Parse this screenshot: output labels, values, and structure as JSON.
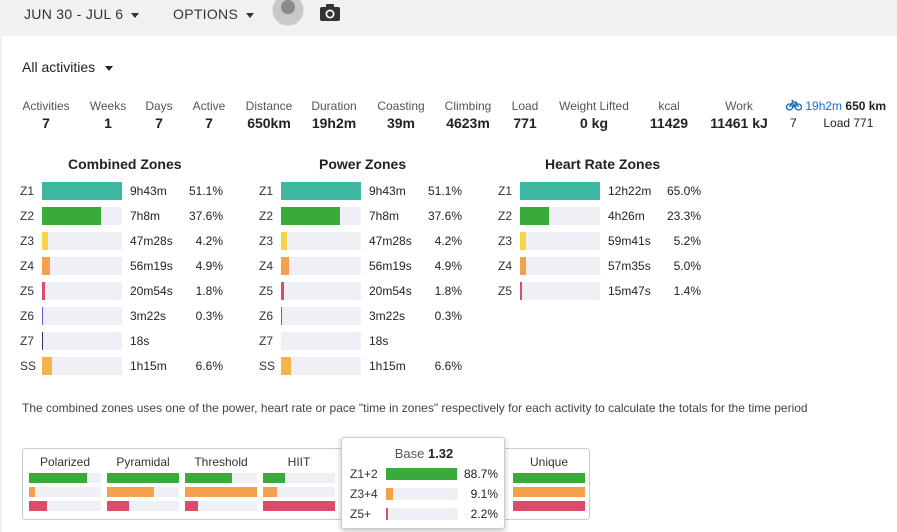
{
  "topbar": {
    "date_range": "JUN 30 - JUL 6",
    "options_label": "OPTIONS",
    "avatar_icon": "user-avatar",
    "camera_icon": "camera-icon"
  },
  "filter": {
    "label": "All activities"
  },
  "stats": [
    {
      "label": "Activities",
      "value": "7"
    },
    {
      "label": "Weeks",
      "value": "1"
    },
    {
      "label": "Days",
      "value": "7"
    },
    {
      "label": "Active",
      "value": "7"
    },
    {
      "label": "Distance",
      "value": "650km"
    },
    {
      "label": "Duration",
      "value": "19h2m"
    },
    {
      "label": "Coasting",
      "value": "39m"
    },
    {
      "label": "Climbing",
      "value": "4623m"
    },
    {
      "label": "Load",
      "value": "771"
    },
    {
      "label": "Weight Lifted",
      "value": "0 kg"
    },
    {
      "label": "kcal",
      "value": "11429"
    },
    {
      "label": "Work",
      "value": "11461 kJ"
    }
  ],
  "bike": {
    "icon": "bicycle-icon",
    "duration": "19h2m",
    "distance": "650 km",
    "count": "7",
    "load": "Load 771"
  },
  "zones": {
    "combined": {
      "title": "Combined Zones",
      "rows": [
        {
          "zone": "Z1",
          "time": "9h43m",
          "pct": "51.1%",
          "fraction": 1.0,
          "color": "#3cb8a0"
        },
        {
          "zone": "Z2",
          "time": "7h8m",
          "pct": "37.6%",
          "fraction": 0.74,
          "color": "#3aaa3a"
        },
        {
          "zone": "Z3",
          "time": "47m28s",
          "pct": "4.2%",
          "fraction": 0.08,
          "color": "#f5d44a"
        },
        {
          "zone": "Z4",
          "time": "56m19s",
          "pct": "4.9%",
          "fraction": 0.1,
          "color": "#f5a04a"
        },
        {
          "zone": "Z5",
          "time": "20m54s",
          "pct": "1.8%",
          "fraction": 0.035,
          "color": "#e04a6a"
        },
        {
          "zone": "Z6",
          "time": "3m22s",
          "pct": "0.3%",
          "fraction": 0.012,
          "color": "#6a5ad0"
        },
        {
          "zone": "Z7",
          "time": "18s",
          "pct": "",
          "fraction": 0.006,
          "color": "#333366"
        },
        {
          "zone": "SS",
          "time": "1h15m",
          "pct": "6.6%",
          "fraction": 0.13,
          "color": "#f5b44a"
        }
      ]
    },
    "power": {
      "title": "Power Zones",
      "rows": [
        {
          "zone": "Z1",
          "time": "9h43m",
          "pct": "51.1%",
          "fraction": 1.0,
          "color": "#3cb8a0"
        },
        {
          "zone": "Z2",
          "time": "7h8m",
          "pct": "37.6%",
          "fraction": 0.74,
          "color": "#3aaa3a"
        },
        {
          "zone": "Z3",
          "time": "47m28s",
          "pct": "4.2%",
          "fraction": 0.08,
          "color": "#f5d44a"
        },
        {
          "zone": "Z4",
          "time": "56m19s",
          "pct": "4.9%",
          "fraction": 0.1,
          "color": "#f5a04a"
        },
        {
          "zone": "Z5",
          "time": "20m54s",
          "pct": "1.8%",
          "fraction": 0.035,
          "color": "#e04a6a"
        },
        {
          "zone": "Z6",
          "time": "3m22s",
          "pct": "0.3%",
          "fraction": 0.012,
          "color": "#6a5ad0"
        },
        {
          "zone": "Z7",
          "time": "18s",
          "pct": "",
          "fraction": 0.0,
          "color": "#333366"
        },
        {
          "zone": "SS",
          "time": "1h15m",
          "pct": "6.6%",
          "fraction": 0.13,
          "color": "#f5b44a"
        }
      ]
    },
    "heart_rate": {
      "title": "Heart Rate Zones",
      "rows": [
        {
          "zone": "Z1",
          "time": "12h22m",
          "pct": "65.0%",
          "fraction": 1.0,
          "color": "#3cb8a0"
        },
        {
          "zone": "Z2",
          "time": "4h26m",
          "pct": "23.3%",
          "fraction": 0.36,
          "color": "#3aaa3a"
        },
        {
          "zone": "Z3",
          "time": "59m41s",
          "pct": "5.2%",
          "fraction": 0.08,
          "color": "#f5d44a"
        },
        {
          "zone": "Z4",
          "time": "57m35s",
          "pct": "5.0%",
          "fraction": 0.08,
          "color": "#f5a04a"
        },
        {
          "zone": "Z5",
          "time": "15m47s",
          "pct": "1.4%",
          "fraction": 0.025,
          "color": "#e04a6a"
        }
      ]
    }
  },
  "note": "The combined zones uses one of the power, heart rate or pace \"time in zones\" respectively for each activity to calculate the totals for the time period",
  "distributions": [
    {
      "name": "Polarized",
      "levels": [
        0.8,
        0.08,
        0.25
      ]
    },
    {
      "name": "Pyramidal",
      "levels": [
        1.0,
        0.65,
        0.3
      ]
    },
    {
      "name": "Threshold",
      "levels": [
        0.65,
        1.0,
        0.18
      ]
    },
    {
      "name": "HIIT",
      "levels": [
        0.3,
        0.2,
        1.0
      ]
    },
    {
      "name": "",
      "levels": [
        0,
        0,
        0
      ]
    },
    {
      "name": "",
      "levels": [
        0,
        0,
        0
      ]
    },
    {
      "name": "Unique",
      "levels": [
        1.0,
        1.0,
        1.0
      ]
    }
  ],
  "popup": {
    "title": "Base",
    "score": "1.32",
    "rows": [
      {
        "label": "Z1+2",
        "pct": "88.7%",
        "fraction": 0.887,
        "color": "#3aaa3a"
      },
      {
        "label": "Z3+4",
        "pct": "9.1%",
        "fraction": 0.091,
        "color": "#f5a04a"
      },
      {
        "label": "Z5+",
        "pct": "2.2%",
        "fraction": 0.022,
        "color": "#e04a6a"
      }
    ]
  },
  "colors": {
    "green": "#3aaa3a",
    "orange": "#f5a04a",
    "red": "#e04a6a",
    "accent_blue": "#1a6bc4"
  }
}
